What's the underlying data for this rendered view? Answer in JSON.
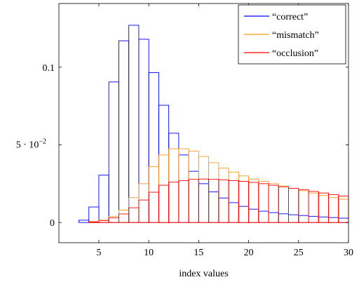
{
  "chart_data": {
    "type": "bar",
    "style": "overlaid step histogram",
    "xlabel": "index values",
    "ylabel": "",
    "xlim": [
      1,
      30
    ],
    "ylim": [
      -0.013,
      0.141
    ],
    "bin_width": 1,
    "x": [
      1,
      2,
      3,
      4,
      5,
      6,
      7,
      8,
      9,
      10,
      11,
      12,
      13,
      14,
      15,
      16,
      17,
      18,
      19,
      20,
      21,
      22,
      23,
      24,
      25,
      26,
      27,
      28,
      29
    ],
    "series": [
      {
        "name": "“correct”",
        "color": "#0000ff",
        "values": [
          0,
          0,
          0.0015,
          0.01,
          0.0305,
          0.0905,
          0.117,
          0.127,
          0.118,
          0.0965,
          0.0755,
          0.0575,
          0.0435,
          0.033,
          0.025,
          0.0197,
          0.0158,
          0.0128,
          0.0104,
          0.0086,
          0.0073,
          0.0064,
          0.0056,
          0.005,
          0.0045,
          0.004,
          0.0036,
          0.0032,
          0.0028
        ]
      },
      {
        "name": "“mismatch”",
        "color": "#ff9a1e",
        "values": [
          0,
          0,
          0,
          0.0005,
          0.0015,
          0.004,
          0.008,
          0.016,
          0.025,
          0.036,
          0.0435,
          0.0475,
          0.0475,
          0.046,
          0.0425,
          0.0385,
          0.035,
          0.0325,
          0.03,
          0.028,
          0.0265,
          0.025,
          0.0235,
          0.022,
          0.0205,
          0.019,
          0.0175,
          0.016,
          0.015
        ]
      },
      {
        "name": "“occlusion”",
        "color": "#ff0000",
        "values": [
          0,
          0,
          0,
          0.0005,
          0.0013,
          0.003,
          0.0055,
          0.0095,
          0.0145,
          0.0195,
          0.024,
          0.026,
          0.027,
          0.0278,
          0.028,
          0.0278,
          0.0275,
          0.027,
          0.0265,
          0.0258,
          0.025,
          0.024,
          0.023,
          0.022,
          0.0212,
          0.02,
          0.019,
          0.018,
          0.017
        ]
      }
    ],
    "xticks": [
      5,
      10,
      15,
      20,
      25,
      30
    ],
    "xtick_labels": [
      "5",
      "10",
      "15",
      "20",
      "25",
      "30"
    ],
    "yticks": [
      0,
      0.05,
      0.1
    ],
    "ytick_labels": [
      "0",
      "5 · 10",
      "0.1"
    ],
    "ytick_exponent": "−2",
    "legend_position": "top-right",
    "grid": false
  }
}
